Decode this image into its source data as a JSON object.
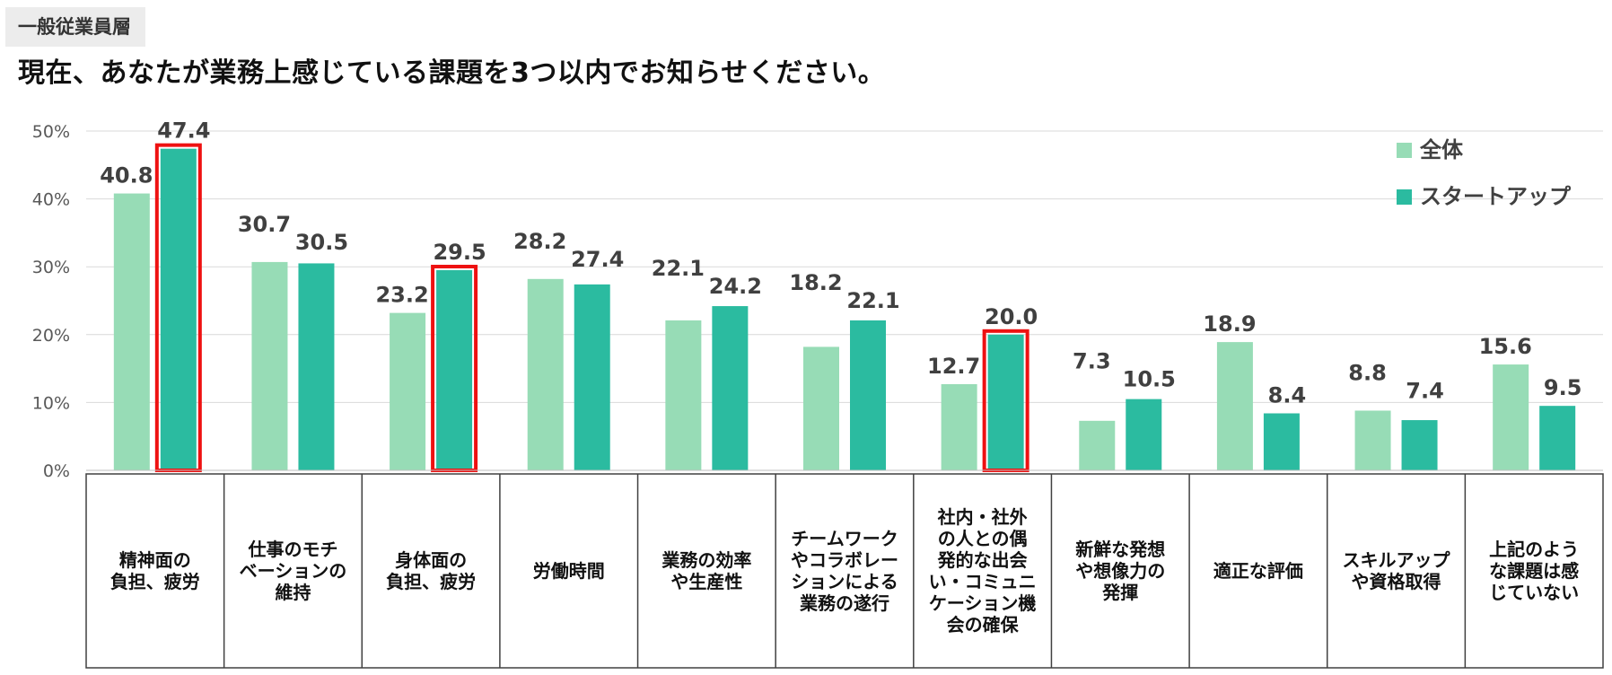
{
  "header": {
    "tag": "一般従業員層",
    "question": "現在、あなたが業務上感じている課題を3つ以内でお知らせください。"
  },
  "colors": {
    "all": "#97dcb6",
    "startup": "#2bbba0",
    "highlight": "#ee1111",
    "grid": "#d9d9d9"
  },
  "chart_data": {
    "type": "bar",
    "unit": "%",
    "ylim": [
      0,
      50
    ],
    "yticks": [
      "0%",
      "10%",
      "20%",
      "30%",
      "40%",
      "50%"
    ],
    "legend": {
      "position": "top-right",
      "entries": [
        "全体",
        "スタートアップ"
      ]
    },
    "categories": [
      [
        "精神面の",
        "負担、疲労"
      ],
      [
        "仕事のモチ",
        "ベーションの",
        "維持"
      ],
      [
        "身体面の",
        "負担、疲労"
      ],
      [
        "労働時間"
      ],
      [
        "業務の効率",
        "や生産性"
      ],
      [
        "チームワーク",
        "やコラボレー",
        "ションによる",
        "業務の遂行"
      ],
      [
        "社内・社外",
        "の人との偶",
        "発的な出会",
        "い・コミュニ",
        "ケーション機",
        "会の確保"
      ],
      [
        "新鮮な発想",
        "や想像力の",
        "発揮"
      ],
      [
        "適正な評価"
      ],
      [
        "スキルアップ",
        "や資格取得"
      ],
      [
        "上記のよう",
        "な課題は感",
        "じていない"
      ]
    ],
    "series": [
      {
        "name": "全体",
        "values": [
          40.8,
          30.7,
          23.2,
          28.2,
          22.1,
          18.2,
          12.7,
          7.3,
          18.9,
          8.8,
          15.6
        ]
      },
      {
        "name": "スタートアップ",
        "values": [
          47.4,
          30.5,
          29.5,
          27.4,
          24.2,
          22.1,
          20.0,
          10.5,
          8.4,
          7.4,
          9.5
        ]
      }
    ],
    "highlighted": {
      "series": "スタートアップ",
      "category_indexes": [
        0,
        2,
        6
      ]
    }
  }
}
